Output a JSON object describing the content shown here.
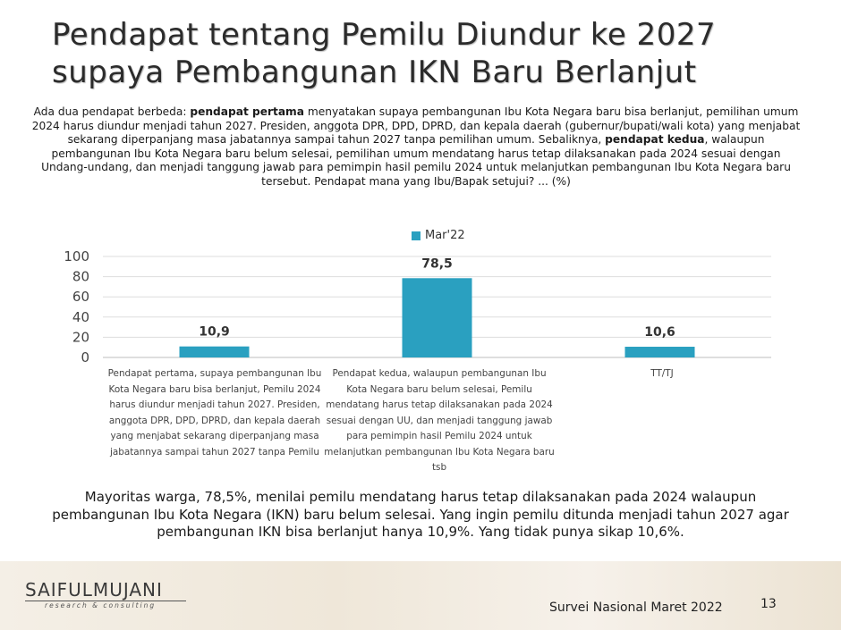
{
  "title_line1": "Pendapat tentang Pemilu Diundur ke 2027",
  "title_line2": "supaya Pembangunan IKN Baru Berlanjut",
  "question": {
    "p1": "Ada dua pendapat berbeda: ",
    "b1": "pendapat pertama",
    "p2": " menyatakan supaya pembangunan Ibu Kota Negara baru bisa berlanjut, pemilihan umum 2024 harus diundur menjadi tahun 2027. Presiden, anggota DPR, DPD, DPRD, dan kepala daerah (gubernur/bupati/wali kota) yang menjabat sekarang diperpanjang masa jabatannya sampai tahun 2027 tanpa pemilihan umum.  Sebaliknya, ",
    "b2": "pendapat kedua",
    "p3": ", walaupun pembangunan Ibu Kota Negara baru belum selesai, pemilihan umum mendatang harus tetap dilaksanakan pada 2024 sesuai dengan Undang-undang, dan menjadi tanggung jawab para pemimpin hasil pemilu 2024 untuk melanjutkan pembangunan Ibu Kota Negara baru tersebut. Pendapat mana yang Ibu/Bapak setujui? ... (%)"
  },
  "chart_data": {
    "type": "bar",
    "series": [
      {
        "name": "Mar'22",
        "values": [
          10.9,
          78.5,
          10.6
        ]
      }
    ],
    "categories": [
      "Pendapat pertama, supaya pembangunan Ibu Kota Negara baru bisa berlanjut, Pemilu 2024 harus diundur menjadi tahun 2027. Presiden, anggota DPR, DPD, DPRD, dan kepala daerah yang menjabat sekarang diperpanjang masa jabatannya sampai tahun 2027 tanpa Pemilu",
      "Pendapat kedua, walaupun pembangunan Ibu Kota Negara baru belum selesai, Pemilu mendatang harus tetap dilaksanakan pada 2024 sesuai dengan UU, dan menjadi tanggung jawab para pemimpin hasil Pemilu 2024 untuk melanjutkan pembangunan Ibu Kota Negara baru tsb",
      "TT/TJ"
    ],
    "value_labels": [
      "10,9",
      "78,5",
      "10,6"
    ],
    "ylim": [
      0,
      100
    ],
    "yticks": [
      0,
      20,
      40,
      60,
      80,
      100
    ],
    "grid": true,
    "legend": "top-center",
    "bar_color": "#2aa0c0"
  },
  "summary": "Mayoritas warga, 78,5%, menilai pemilu mendatang harus tetap dilaksanakan pada 2024 walaupun pembangunan Ibu Kota Negara (IKN) baru belum selesai. Yang ingin pemilu ditunda menjadi tahun 2027 agar pembangunan IKN bisa berlanjut hanya 10,9%. Yang tidak punya sikap 10,6%.",
  "logo_text": "SAIFULMUJANI",
  "logo_subtext": "research & consulting",
  "survey_label": "Survei Nasional Maret 2022",
  "page_number": "13"
}
